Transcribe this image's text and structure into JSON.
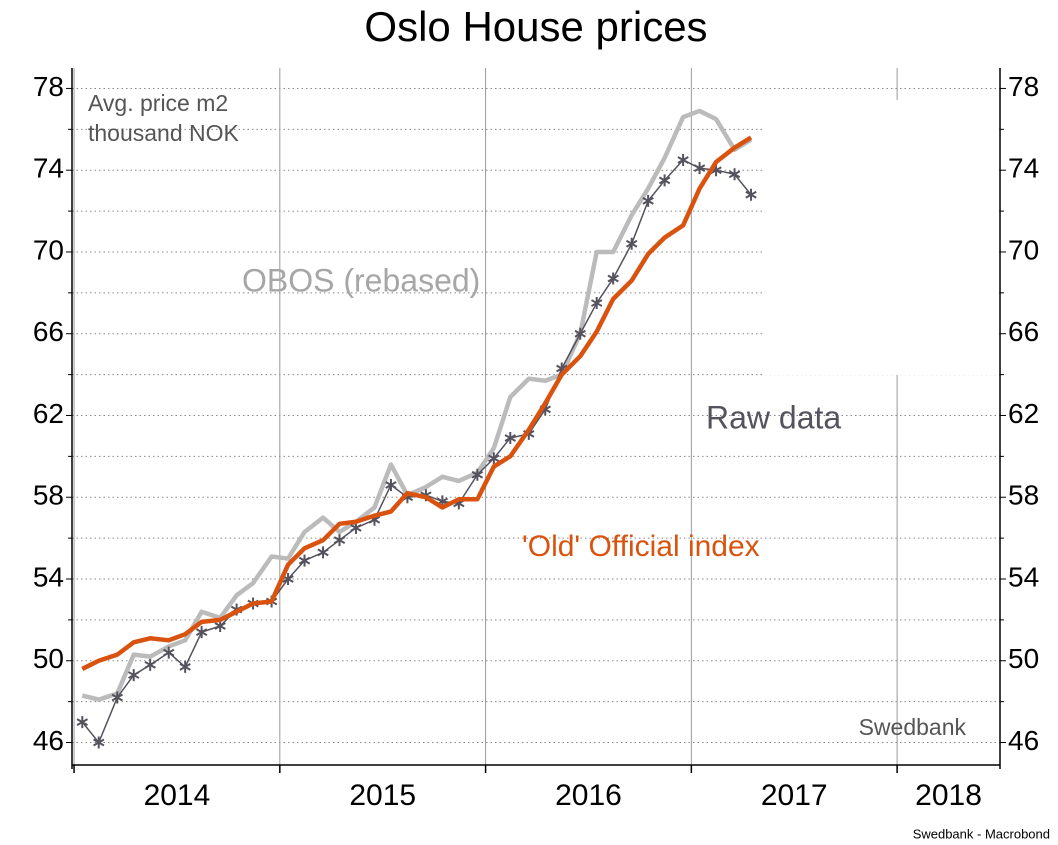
{
  "chart_data": {
    "type": "line",
    "title": "Oslo House prices",
    "y_label": [
      "Avg. price m2",
      "thousand NOK"
    ],
    "source_note": "Swedbank",
    "footer": "Swedbank - Macrobond",
    "x": [
      2014.04,
      2014.12,
      2014.21,
      2014.29,
      2014.37,
      2014.46,
      2014.54,
      2014.62,
      2014.71,
      2014.79,
      2014.87,
      2014.96,
      2015.04,
      2015.12,
      2015.21,
      2015.29,
      2015.37,
      2015.46,
      2015.54,
      2015.62,
      2015.71,
      2015.79,
      2015.87,
      2015.96,
      2016.04,
      2016.12,
      2016.21,
      2016.29,
      2016.37,
      2016.46,
      2016.54,
      2016.62,
      2016.71,
      2016.79,
      2016.87,
      2016.96,
      2017.04,
      2017.12,
      2017.21,
      2017.29
    ],
    "series": [
      {
        "name": "OBOS (rebased)",
        "color": "#bbbbbb",
        "marker": "none",
        "values": [
          48.3,
          48.1,
          48.4,
          50.3,
          50.2,
          50.7,
          51.0,
          52.4,
          52.1,
          53.2,
          53.8,
          55.1,
          55.0,
          56.3,
          57.0,
          56.3,
          56.8,
          57.5,
          59.6,
          58.1,
          58.5,
          59.0,
          58.8,
          59.2,
          60.4,
          62.9,
          63.8,
          63.7,
          64.0,
          66.0,
          70.0,
          70.0,
          71.8,
          73.1,
          74.6,
          76.6,
          76.9,
          76.5,
          75.0,
          75.5
        ]
      },
      {
        "name": "Raw data",
        "color": "#55525e",
        "marker": "asterisk",
        "values": [
          47.0,
          46.0,
          48.2,
          49.3,
          49.8,
          50.4,
          49.7,
          51.4,
          51.7,
          52.5,
          52.8,
          52.9,
          54.0,
          54.9,
          55.3,
          55.9,
          56.5,
          56.9,
          58.6,
          58.0,
          58.1,
          57.8,
          57.7,
          59.1,
          59.9,
          60.9,
          61.1,
          62.3,
          64.3,
          66.0,
          67.5,
          68.7,
          70.4,
          72.5,
          73.5,
          74.5,
          74.1,
          74.0,
          73.8,
          72.8
        ]
      },
      {
        "name": "'Old' Official index",
        "color": "#d9530f",
        "marker": "none",
        "values": [
          49.6,
          50.0,
          50.3,
          50.9,
          51.1,
          51.0,
          51.3,
          51.9,
          52.0,
          52.4,
          52.8,
          52.9,
          54.7,
          55.5,
          55.9,
          56.7,
          56.8,
          57.1,
          57.3,
          58.2,
          58.0,
          57.5,
          57.9,
          57.9,
          59.5,
          60.0,
          61.3,
          62.6,
          64.0,
          64.9,
          66.1,
          67.7,
          68.6,
          69.9,
          70.7,
          71.3,
          73.1,
          74.4,
          75.1,
          75.6
        ]
      }
    ],
    "xlim": [
      2013.99,
      2018.5
    ],
    "xticks": [
      2014,
      2015,
      2016,
      2017,
      2018
    ],
    "ylim": [
      44.9,
      79.0
    ],
    "yticks": [
      46,
      50,
      54,
      58,
      62,
      66,
      70,
      74,
      78
    ],
    "minor_yticks": [
      48,
      52,
      56,
      60,
      64,
      68,
      72,
      76
    ],
    "y2lim": [
      44.9,
      79.0
    ],
    "grid": true
  }
}
